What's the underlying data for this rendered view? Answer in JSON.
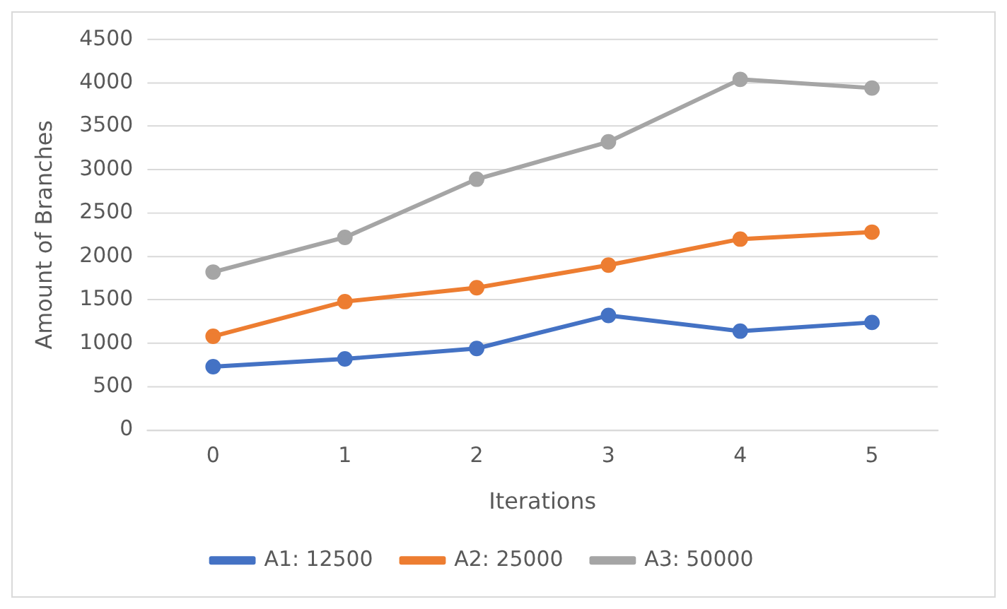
{
  "chart_data": {
    "type": "line",
    "xlabel": "Iterations",
    "ylabel": "Amount of Branches",
    "categories": [
      "0",
      "1",
      "2",
      "3",
      "4",
      "5"
    ],
    "series": [
      {
        "name": "A1: 12500",
        "color": "#4472c4",
        "values": [
          730,
          820,
          940,
          1320,
          1140,
          1240
        ]
      },
      {
        "name": "A2: 25000",
        "color": "#ed7d31",
        "values": [
          1080,
          1480,
          1640,
          1900,
          2200,
          2280
        ]
      },
      {
        "name": "A3: 50000",
        "color": "#a5a5a5",
        "values": [
          1820,
          2220,
          2890,
          3320,
          4040,
          3940
        ]
      }
    ],
    "ylim": [
      0,
      4500
    ],
    "yticks": [
      0,
      500,
      1000,
      1500,
      2000,
      2500,
      3000,
      3500,
      4000,
      4500
    ],
    "grid": "y",
    "legend": "bottom",
    "marker": "circle",
    "line_style": "solid"
  }
}
